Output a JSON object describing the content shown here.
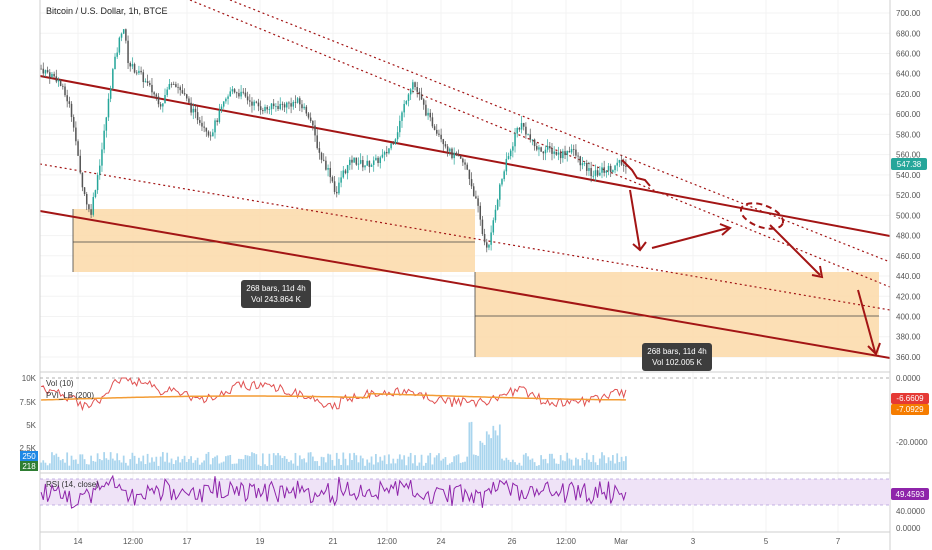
{
  "header": {
    "title": "Bitcoin / U.S. Dollar, 1h, BTCE"
  },
  "colors": {
    "up": "#26a69a",
    "down": "#555555",
    "channel": "#a31515",
    "zone": "#fbd9a8",
    "price_badge": "#26a69a",
    "vol_line": "#e05252",
    "vol_ma": "#f39c34",
    "rsi": "#8e24aa",
    "rsi_band": "#efe3f7",
    "volume_bars": "#a9d5ee"
  },
  "chart_data": [
    {
      "type": "candlestick",
      "title": "Bitcoin / U.S. Dollar, 1h, BTCE",
      "y_axis": {
        "ticks": [
          "700.00",
          "680.00",
          "660.00",
          "640.00",
          "620.00",
          "600.00",
          "580.00",
          "560.00",
          "540.00",
          "520.00",
          "500.00",
          "480.00",
          "460.00",
          "440.00",
          "420.00",
          "400.00",
          "380.00",
          "360.00"
        ],
        "range": [
          355,
          705
        ]
      },
      "x_axis": {
        "ticks": [
          "14",
          "12:00",
          "17",
          "19",
          "21",
          "12:00",
          "24",
          "26",
          "12:00",
          "Mar",
          "3",
          "5",
          "7"
        ]
      },
      "last_price": "547.38",
      "price_path": [
        [
          0,
          645
        ],
        [
          3,
          635
        ],
        [
          5,
          612
        ],
        [
          6,
          590
        ],
        [
          7,
          545
        ],
        [
          8,
          520
        ],
        [
          9,
          500
        ],
        [
          10,
          530
        ],
        [
          11,
          560
        ],
        [
          12,
          600
        ],
        [
          13,
          640
        ],
        [
          14,
          665
        ],
        [
          15,
          690
        ],
        [
          16,
          650
        ],
        [
          18,
          640
        ],
        [
          20,
          625
        ],
        [
          22,
          610
        ],
        [
          24,
          635
        ],
        [
          26,
          620
        ],
        [
          28,
          600
        ],
        [
          29,
          595
        ],
        [
          31,
          580
        ],
        [
          33,
          605
        ],
        [
          35,
          625
        ],
        [
          37,
          618
        ],
        [
          39,
          610
        ],
        [
          41,
          605
        ],
        [
          43,
          608
        ],
        [
          45,
          610
        ],
        [
          47,
          612
        ],
        [
          49,
          600
        ],
        [
          51,
          560
        ],
        [
          53,
          540
        ],
        [
          54,
          520
        ],
        [
          55,
          540
        ],
        [
          57,
          555
        ],
        [
          59,
          550
        ],
        [
          61,
          552
        ],
        [
          63,
          560
        ],
        [
          65,
          580
        ],
        [
          66,
          600
        ],
        [
          67,
          620
        ],
        [
          68,
          632
        ],
        [
          69,
          620
        ],
        [
          71,
          595
        ],
        [
          73,
          580
        ],
        [
          75,
          560
        ],
        [
          77,
          553
        ],
        [
          78,
          545
        ],
        [
          79,
          525
        ],
        [
          80,
          505
        ],
        [
          81,
          475
        ],
        [
          82,
          468
        ],
        [
          83,
          505
        ],
        [
          84,
          530
        ],
        [
          85,
          550
        ],
        [
          86,
          565
        ],
        [
          87,
          585
        ],
        [
          88,
          590
        ],
        [
          89,
          580
        ],
        [
          90,
          570
        ],
        [
          91,
          565
        ],
        [
          93,
          565
        ],
        [
          95,
          560
        ],
        [
          97,
          566
        ],
        [
          99,
          550
        ],
        [
          101,
          540
        ],
        [
          103,
          545
        ],
        [
          105,
          548
        ],
        [
          106,
          552
        ],
        [
          107,
          547
        ]
      ],
      "annotations": [
        {
          "text": "268 bars, 11d 4h",
          "sub": "Vol 243.864 K"
        },
        {
          "text": "268 bars, 11d 4h",
          "sub": "Vol 102.005 K"
        }
      ]
    },
    {
      "type": "volume",
      "legend": [
        "Vol (10)",
        "PVI_LB (200)"
      ],
      "left_ticks": [
        "10K",
        "7.5K",
        "5K",
        "2.5K"
      ],
      "left_badges": [
        "250",
        "218"
      ],
      "right_ticks": [
        "0.0000",
        "-20.0000"
      ],
      "right_badges": [
        "-6.6609",
        "-7.0929"
      ]
    },
    {
      "type": "line",
      "legend": "RSI (14, close)",
      "right_ticks": [
        "40.0000",
        "0.0000"
      ],
      "last_value": "49.4593"
    }
  ]
}
